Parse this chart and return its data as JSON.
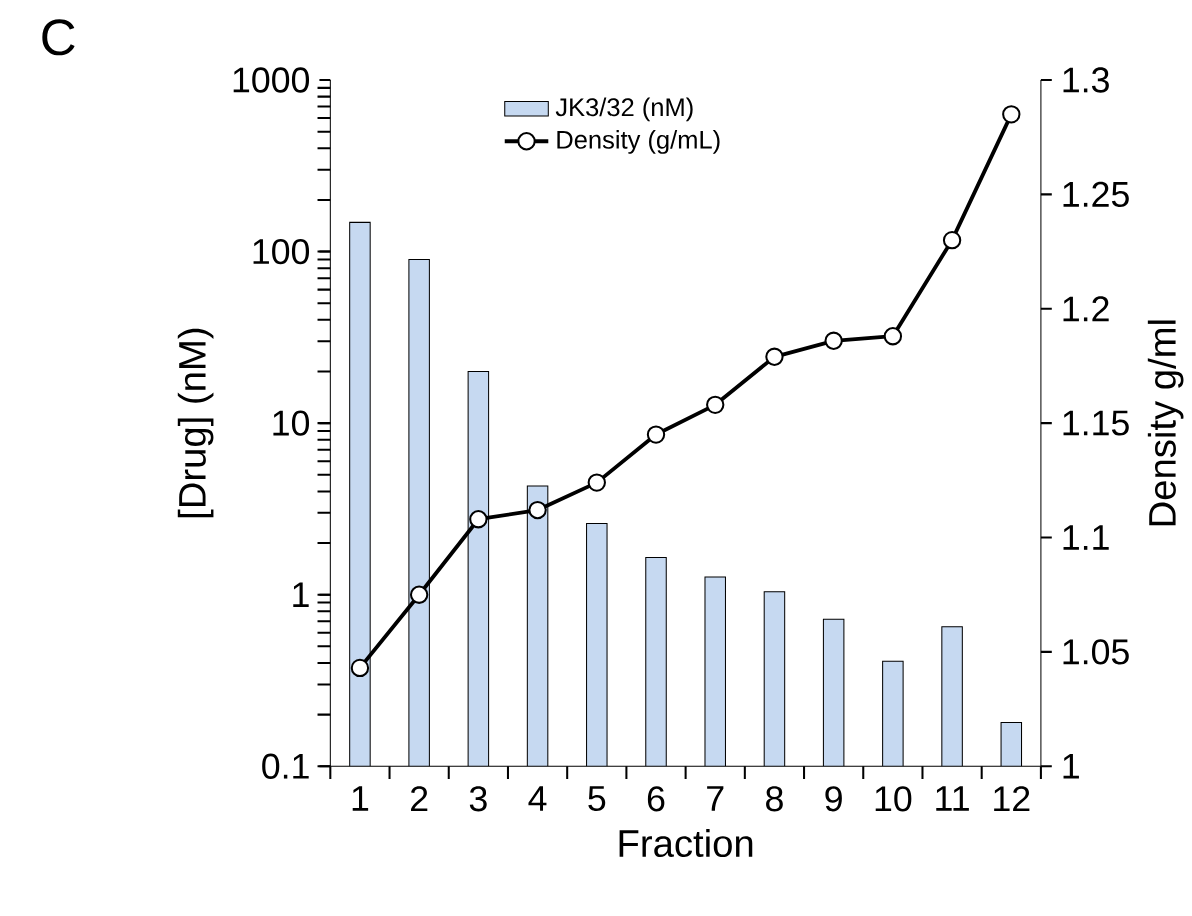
{
  "chart_data": {
    "type": "bar",
    "title": "C",
    "xlabel": "Fraction",
    "ylabel": "[Drug] (nM)",
    "y2label": "Density g/ml",
    "categories": [
      "1",
      "2",
      "3",
      "4",
      "5",
      "6",
      "7",
      "8",
      "9",
      "10",
      "11",
      "12"
    ],
    "series": [
      {
        "name": "JK3/32 (nM)",
        "color": "#c6d9f1",
        "values": [
          148,
          90,
          20,
          4.3,
          2.6,
          1.65,
          1.27,
          1.04,
          0.72,
          0.41,
          0.65,
          0.18
        ]
      },
      {
        "name": "Density (g/mL)",
        "type": "line",
        "axis": "y2",
        "color": "#000000",
        "marker": "circle",
        "values": [
          1.043,
          1.075,
          1.108,
          1.112,
          1.124,
          1.145,
          1.158,
          1.179,
          1.186,
          1.188,
          1.23,
          1.285
        ]
      }
    ],
    "log": "y",
    "ylim": [
      0.1,
      1000
    ],
    "yticks": [
      0.1,
      1,
      10,
      100,
      1000
    ],
    "y2lim": [
      1,
      1.3
    ],
    "y2ticks": [
      1,
      1.05,
      1.1,
      1.15,
      1.2,
      1.25,
      1.3
    ],
    "legend": "top"
  }
}
